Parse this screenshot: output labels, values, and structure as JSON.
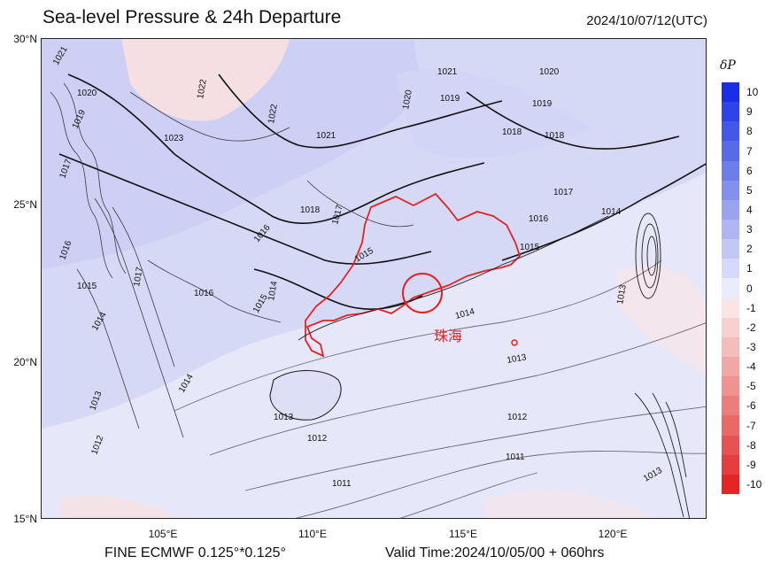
{
  "header": {
    "title": "Sea-level Pressure & 24h Departure",
    "datetime": "2024/10/07/12(UTC)"
  },
  "footer": {
    "source": "FINE ECMWF 0.125°*0.125°",
    "valid_time": "Valid Time:2024/10/05/00 + 060hrs"
  },
  "map": {
    "lat_ticks": [
      "30°N",
      "25°N",
      "20°N",
      "15°N"
    ],
    "lon_ticks": [
      "105°E",
      "110°E",
      "115°E",
      "120°E"
    ],
    "highlight_city": "珠海",
    "contour_labels": [
      {
        "text": "1021"
      },
      {
        "text": "1020"
      },
      {
        "text": "1019"
      },
      {
        "text": "1022"
      },
      {
        "text": "1023"
      },
      {
        "text": "1022"
      },
      {
        "text": "1020"
      },
      {
        "text": "1021"
      },
      {
        "text": "1021"
      },
      {
        "text": "1020"
      },
      {
        "text": "1019"
      },
      {
        "text": "1019"
      },
      {
        "text": "1018"
      },
      {
        "text": "1018"
      },
      {
        "text": "1017"
      },
      {
        "text": "1016"
      },
      {
        "text": "1015"
      },
      {
        "text": "1014"
      },
      {
        "text": "1014"
      },
      {
        "text": "1013"
      },
      {
        "text": "1013"
      },
      {
        "text": "1012"
      },
      {
        "text": "1012"
      },
      {
        "text": "1011"
      },
      {
        "text": "1011"
      },
      {
        "text": "1014"
      },
      {
        "text": "1015"
      },
      {
        "text": "1016"
      },
      {
        "text": "1017"
      },
      {
        "text": "1018"
      },
      {
        "text": "1015"
      },
      {
        "text": "1014"
      },
      {
        "text": "1013"
      },
      {
        "text": "1012"
      },
      {
        "text": "1013"
      },
      {
        "text": "1017"
      },
      {
        "text": "1016"
      },
      {
        "text": "1016"
      },
      {
        "text": "1015"
      },
      {
        "text": "1017"
      },
      {
        "text": "1014"
      },
      {
        "text": "1013"
      }
    ]
  },
  "legend": {
    "symbol": "δP",
    "levels": [
      {
        "label": "10",
        "color": "#1a2ee6"
      },
      {
        "label": "9",
        "color": "#2e44e6"
      },
      {
        "label": "8",
        "color": "#4358e6"
      },
      {
        "label": "7",
        "color": "#596ae6"
      },
      {
        "label": "6",
        "color": "#6e7ee8"
      },
      {
        "label": "5",
        "color": "#8590ea"
      },
      {
        "label": "4",
        "color": "#99a3ee"
      },
      {
        "label": "3",
        "color": "#aeb5f1"
      },
      {
        "label": "2",
        "color": "#c2c7f4"
      },
      {
        "label": "1",
        "color": "#d6d9f8"
      },
      {
        "label": "0",
        "color": "#eaecfb"
      },
      {
        "label": "-1",
        "color": "#fbe4e4"
      },
      {
        "label": "-2",
        "color": "#f8d0d0"
      },
      {
        "label": "-3",
        "color": "#f5bcbc"
      },
      {
        "label": "-4",
        "color": "#f2a7a7"
      },
      {
        "label": "-5",
        "color": "#ef9292"
      },
      {
        "label": "-6",
        "color": "#ec7d7d"
      },
      {
        "label": "-7",
        "color": "#ea6868"
      },
      {
        "label": "-8",
        "color": "#e75353"
      },
      {
        "label": "-9",
        "color": "#e63e3e"
      },
      {
        "label": "-10",
        "color": "#e62424"
      }
    ]
  }
}
